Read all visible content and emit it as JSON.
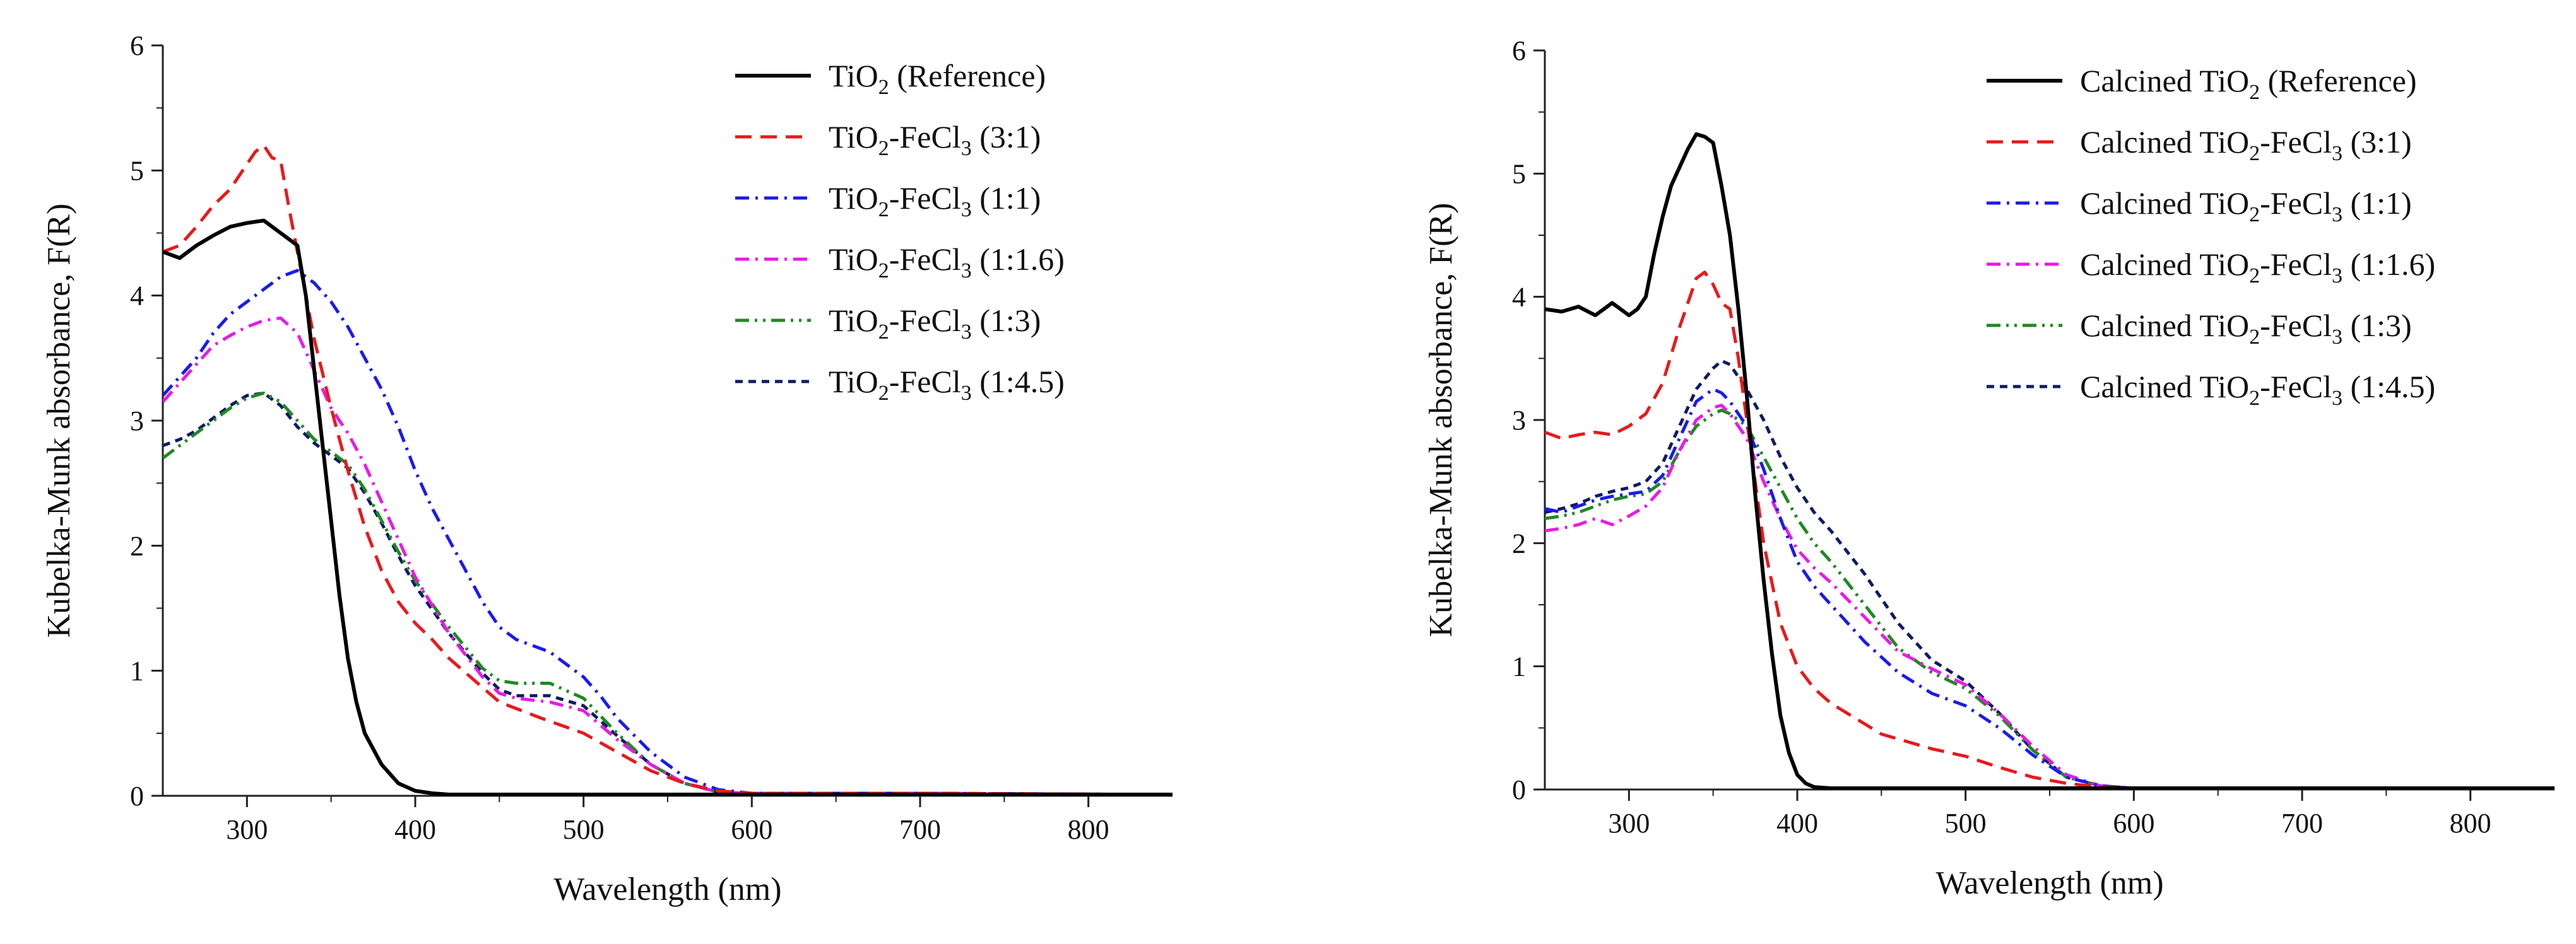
{
  "chart_data": [
    {
      "type": "line",
      "xlabel": "Wavelength (nm)",
      "ylabel": "Kubelka-Munk absorbance, F(R)",
      "xlim": [
        250,
        850
      ],
      "ylim": [
        0,
        6
      ],
      "xticks": [
        300,
        400,
        500,
        600,
        700,
        800
      ],
      "yticks": [
        0,
        1,
        2,
        3,
        4,
        5,
        6
      ],
      "legend_position": "top-right",
      "series": [
        {
          "name_prefix": "TiO",
          "name_sub": "2",
          "name_suffix": " (Reference)",
          "color": "#000000",
          "dash": "solid",
          "x": [
            250,
            260,
            270,
            280,
            290,
            300,
            310,
            320,
            330,
            335,
            340,
            345,
            350,
            355,
            360,
            365,
            370,
            380,
            390,
            400,
            410,
            420,
            450,
            500,
            600,
            700,
            850
          ],
          "y": [
            4.35,
            4.3,
            4.4,
            4.48,
            4.55,
            4.58,
            4.6,
            4.5,
            4.4,
            4.0,
            3.4,
            2.8,
            2.2,
            1.6,
            1.1,
            0.75,
            0.5,
            0.25,
            0.1,
            0.04,
            0.02,
            0.01,
            0.01,
            0.01,
            0.01,
            0.01,
            0.01
          ]
        },
        {
          "name_prefix": "TiO",
          "name_sub": "2",
          "name_suffix": "-FeCl",
          "name_sub2": "3",
          "name_suffix2": " (3:1)",
          "color": "#e8191b",
          "dash": "long-dash",
          "x": [
            250,
            260,
            270,
            280,
            290,
            300,
            305,
            310,
            315,
            320,
            325,
            330,
            335,
            340,
            350,
            360,
            370,
            380,
            390,
            400,
            410,
            420,
            450,
            475,
            500,
            520,
            540,
            560,
            580,
            600,
            700,
            850
          ],
          "y": [
            4.35,
            4.4,
            4.55,
            4.72,
            4.85,
            5.05,
            5.15,
            5.2,
            5.1,
            5.08,
            4.7,
            4.35,
            4.0,
            3.65,
            3.1,
            2.6,
            2.15,
            1.8,
            1.55,
            1.38,
            1.25,
            1.1,
            0.75,
            0.62,
            0.5,
            0.35,
            0.2,
            0.1,
            0.04,
            0.02,
            0.02,
            0.01
          ]
        },
        {
          "name_prefix": "TiO",
          "name_sub": "2",
          "name_suffix": "-FeCl",
          "name_sub2": "3",
          "name_suffix2": " (1:1)",
          "color": "#1a1aee",
          "dash": "dash-dot",
          "x": [
            250,
            260,
            270,
            280,
            290,
            300,
            310,
            320,
            330,
            340,
            350,
            360,
            370,
            380,
            390,
            400,
            410,
            420,
            430,
            440,
            450,
            460,
            480,
            490,
            500,
            510,
            520,
            540,
            560,
            580,
            600,
            700,
            850
          ],
          "y": [
            3.2,
            3.35,
            3.5,
            3.7,
            3.85,
            3.95,
            4.05,
            4.15,
            4.2,
            4.1,
            3.95,
            3.75,
            3.5,
            3.25,
            2.95,
            2.6,
            2.3,
            2.05,
            1.8,
            1.55,
            1.35,
            1.25,
            1.15,
            1.05,
            0.95,
            0.8,
            0.62,
            0.35,
            0.15,
            0.05,
            0.02,
            0.02,
            0.01
          ]
        },
        {
          "name_prefix": "TiO",
          "name_sub": "2",
          "name_suffix": "-FeCl",
          "name_sub2": "3",
          "name_suffix2": " (1:1.6)",
          "color": "#e81ae8",
          "dash": "dash-dot",
          "x": [
            250,
            260,
            270,
            280,
            290,
            300,
            310,
            320,
            330,
            340,
            350,
            360,
            370,
            380,
            390,
            400,
            420,
            440,
            450,
            460,
            480,
            500,
            520,
            540,
            560,
            580,
            600,
            700,
            850
          ],
          "y": [
            3.15,
            3.3,
            3.45,
            3.6,
            3.68,
            3.75,
            3.8,
            3.82,
            3.7,
            3.4,
            3.1,
            2.9,
            2.65,
            2.35,
            2.05,
            1.75,
            1.3,
            0.95,
            0.82,
            0.78,
            0.75,
            0.68,
            0.45,
            0.25,
            0.1,
            0.03,
            0.02,
            0.02,
            0.01
          ]
        },
        {
          "name_prefix": "TiO",
          "name_sub": "2",
          "name_suffix": "-FeCl",
          "name_sub2": "3",
          "name_suffix2": " (1:3)",
          "color": "#1e8a1e",
          "dash": "dash-dot-dot",
          "x": [
            250,
            260,
            270,
            280,
            290,
            300,
            310,
            320,
            330,
            340,
            350,
            360,
            370,
            380,
            390,
            400,
            420,
            440,
            450,
            460,
            480,
            500,
            520,
            540,
            560,
            580,
            600,
            700,
            850
          ],
          "y": [
            2.7,
            2.8,
            2.9,
            3.0,
            3.1,
            3.18,
            3.22,
            3.15,
            3.0,
            2.85,
            2.75,
            2.65,
            2.45,
            2.2,
            1.95,
            1.72,
            1.35,
            1.02,
            0.92,
            0.9,
            0.9,
            0.78,
            0.5,
            0.25,
            0.1,
            0.03,
            0.02,
            0.02,
            0.01
          ]
        },
        {
          "name_prefix": "TiO",
          "name_sub": "2",
          "name_suffix": "-FeCl",
          "name_sub2": "3",
          "name_suffix2": " (1:4.5)",
          "color": "#0f1a66",
          "dash": "short-dash",
          "x": [
            250,
            260,
            270,
            280,
            290,
            300,
            310,
            320,
            330,
            340,
            350,
            360,
            370,
            380,
            390,
            400,
            420,
            440,
            450,
            460,
            480,
            500,
            520,
            540,
            560,
            580,
            600,
            700,
            850
          ],
          "y": [
            2.8,
            2.85,
            2.92,
            3.02,
            3.12,
            3.2,
            3.22,
            3.12,
            2.95,
            2.82,
            2.72,
            2.62,
            2.42,
            2.18,
            1.92,
            1.68,
            1.3,
            0.98,
            0.85,
            0.8,
            0.8,
            0.72,
            0.48,
            0.25,
            0.1,
            0.03,
            0.02,
            0.02,
            0.01
          ]
        }
      ]
    },
    {
      "type": "line",
      "xlabel": "Wavelength (nm)",
      "ylabel": "Kubelka-Munk absorbance, F(R)",
      "xlim": [
        250,
        850
      ],
      "ylim": [
        0,
        6
      ],
      "xticks": [
        300,
        400,
        500,
        600,
        700,
        800
      ],
      "yticks": [
        0,
        1,
        2,
        3,
        4,
        5,
        6
      ],
      "legend_position": "top-right",
      "series": [
        {
          "name_prefix": "Calcined TiO",
          "name_sub": "2",
          "name_suffix": " (Reference)",
          "color": "#000000",
          "dash": "solid",
          "x": [
            250,
            260,
            270,
            280,
            290,
            300,
            305,
            310,
            315,
            320,
            325,
            330,
            335,
            340,
            345,
            350,
            355,
            360,
            365,
            370,
            375,
            380,
            385,
            390,
            395,
            400,
            405,
            410,
            420,
            450,
            600,
            850
          ],
          "y": [
            3.9,
            3.88,
            3.92,
            3.85,
            3.95,
            3.85,
            3.9,
            4.0,
            4.35,
            4.65,
            4.9,
            5.05,
            5.2,
            5.32,
            5.3,
            5.25,
            4.9,
            4.5,
            3.9,
            3.2,
            2.4,
            1.7,
            1.1,
            0.6,
            0.3,
            0.12,
            0.05,
            0.02,
            0.01,
            0.01,
            0.01,
            0.01
          ]
        },
        {
          "name_prefix": "Calcined TiO",
          "name_sub": "2",
          "name_suffix": "-FeCl",
          "name_sub2": "3",
          "name_suffix2": " (3:1)",
          "color": "#e8191b",
          "dash": "long-dash",
          "x": [
            250,
            260,
            270,
            280,
            290,
            300,
            310,
            320,
            330,
            340,
            345,
            350,
            355,
            360,
            365,
            370,
            375,
            380,
            390,
            400,
            410,
            420,
            450,
            480,
            500,
            520,
            540,
            560,
            580,
            600,
            850
          ],
          "y": [
            2.9,
            2.85,
            2.88,
            2.9,
            2.88,
            2.95,
            3.05,
            3.3,
            3.75,
            4.15,
            4.2,
            4.1,
            3.95,
            3.9,
            3.5,
            3.0,
            2.5,
            2.0,
            1.35,
            1.0,
            0.82,
            0.7,
            0.45,
            0.33,
            0.27,
            0.18,
            0.1,
            0.05,
            0.02,
            0.01,
            0.01
          ]
        },
        {
          "name_prefix": "Calcined TiO",
          "name_sub": "2",
          "name_suffix": "-FeCl",
          "name_sub2": "3",
          "name_suffix2": " (1:1)",
          "color": "#1a1aee",
          "dash": "dash-dot",
          "x": [
            250,
            260,
            270,
            280,
            290,
            300,
            310,
            320,
            330,
            340,
            350,
            355,
            360,
            370,
            380,
            390,
            400,
            410,
            420,
            440,
            460,
            480,
            500,
            520,
            540,
            560,
            580,
            600,
            850
          ],
          "y": [
            2.28,
            2.25,
            2.3,
            2.35,
            2.38,
            2.4,
            2.42,
            2.55,
            2.85,
            3.15,
            3.25,
            3.22,
            3.15,
            2.95,
            2.6,
            2.2,
            1.85,
            1.65,
            1.5,
            1.2,
            0.95,
            0.78,
            0.68,
            0.5,
            0.28,
            0.1,
            0.03,
            0.01,
            0.01
          ]
        },
        {
          "name_prefix": "Calcined TiO",
          "name_sub": "2",
          "name_suffix": "-FeCl",
          "name_sub2": "3",
          "name_suffix2": " (1:1.6)",
          "color": "#e81ae8",
          "dash": "dash-dot",
          "x": [
            250,
            260,
            270,
            280,
            290,
            300,
            310,
            320,
            330,
            340,
            350,
            355,
            360,
            370,
            380,
            390,
            400,
            410,
            420,
            440,
            460,
            480,
            500,
            520,
            540,
            560,
            580,
            600,
            850
          ],
          "y": [
            2.1,
            2.12,
            2.15,
            2.2,
            2.15,
            2.22,
            2.3,
            2.45,
            2.75,
            3.0,
            3.1,
            3.12,
            3.05,
            2.85,
            2.5,
            2.2,
            1.95,
            1.8,
            1.68,
            1.4,
            1.12,
            0.98,
            0.85,
            0.62,
            0.35,
            0.12,
            0.03,
            0.01,
            0.01
          ]
        },
        {
          "name_prefix": "Calcined TiO",
          "name_sub": "2",
          "name_suffix": "-FeCl",
          "name_sub2": "3",
          "name_suffix2": " (1:3)",
          "color": "#1e8a1e",
          "dash": "dash-dot-dot",
          "x": [
            250,
            260,
            270,
            280,
            290,
            300,
            310,
            320,
            330,
            340,
            350,
            355,
            360,
            370,
            380,
            390,
            400,
            410,
            420,
            440,
            460,
            480,
            500,
            520,
            540,
            560,
            580,
            600,
            850
          ],
          "y": [
            2.2,
            2.22,
            2.25,
            2.3,
            2.35,
            2.38,
            2.4,
            2.5,
            2.75,
            2.95,
            3.05,
            3.08,
            3.05,
            2.95,
            2.7,
            2.45,
            2.2,
            2.0,
            1.85,
            1.5,
            1.15,
            0.95,
            0.82,
            0.6,
            0.32,
            0.1,
            0.03,
            0.01,
            0.01
          ]
        },
        {
          "name_prefix": "Calcined TiO",
          "name_sub": "2",
          "name_suffix": "-FeCl",
          "name_sub2": "3",
          "name_suffix2": " (1:4.5)",
          "color": "#0f1a66",
          "dash": "short-dash",
          "x": [
            250,
            260,
            270,
            280,
            290,
            300,
            310,
            320,
            330,
            340,
            350,
            355,
            360,
            370,
            380,
            390,
            400,
            410,
            420,
            440,
            460,
            480,
            500,
            520,
            540,
            560,
            580,
            600,
            850
          ],
          "y": [
            2.25,
            2.28,
            2.32,
            2.38,
            2.42,
            2.45,
            2.5,
            2.65,
            2.95,
            3.25,
            3.42,
            3.48,
            3.45,
            3.25,
            3.0,
            2.7,
            2.45,
            2.25,
            2.1,
            1.75,
            1.35,
            1.05,
            0.88,
            0.62,
            0.32,
            0.1,
            0.03,
            0.01,
            0.01
          ]
        }
      ]
    }
  ]
}
